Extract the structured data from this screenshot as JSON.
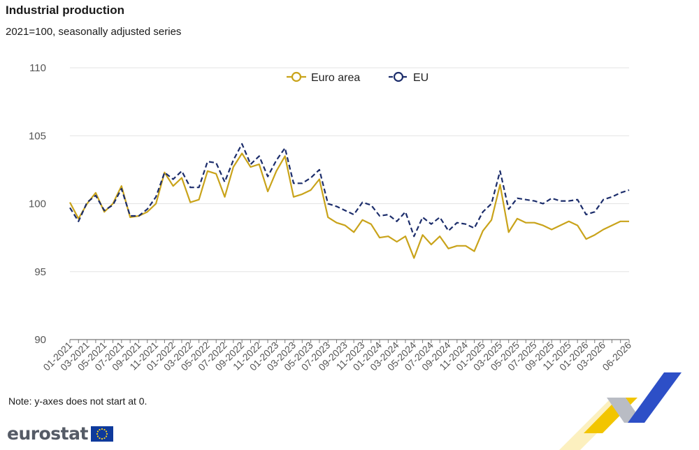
{
  "header": {
    "title": "Industrial production",
    "subtitle": "2021=100, seasonally adjusted series"
  },
  "footer": {
    "note": "Note: y-axes does not start at 0.",
    "logo_text": "eurostat"
  },
  "colors": {
    "euro_area": "#c9a31a",
    "eu": "#1c2d6b",
    "grid": "#e3e3e3",
    "deco_yellow": "#f2c500",
    "deco_blue": "#2d4fc7",
    "deco_grey": "#b9bcc4"
  },
  "chart_data": {
    "type": "line",
    "ylim": [
      90,
      110
    ],
    "yticks": [
      "90",
      "95",
      "100",
      "105",
      "110"
    ],
    "x": [
      "01-2021",
      "02-2021",
      "03-2021",
      "04-2021",
      "05-2021",
      "06-2021",
      "07-2021",
      "08-2021",
      "09-2021",
      "10-2021",
      "11-2021",
      "12-2021",
      "01-2022",
      "02-2022",
      "03-2022",
      "04-2022",
      "05-2022",
      "06-2022",
      "07-2022",
      "08-2022",
      "09-2022",
      "10-2022",
      "11-2022",
      "12-2022",
      "01-2023",
      "02-2023",
      "03-2023",
      "04-2023",
      "05-2023",
      "06-2023",
      "07-2023",
      "08-2023",
      "09-2023",
      "10-2023",
      "11-2023",
      "12-2023",
      "01-2024",
      "02-2024",
      "03-2024",
      "04-2024",
      "05-2024",
      "06-2024",
      "07-2024",
      "08-2024",
      "09-2024",
      "10-2024",
      "11-2024",
      "12-2024",
      "01-2025",
      "02-2025",
      "03-2025",
      "04-2025",
      "05-2025",
      "06-2025",
      "07-2025",
      "08-2025",
      "09-2025",
      "10-2025",
      "11-2025",
      "12-2025",
      "01-2026",
      "02-2026",
      "03-2026",
      "04-2026",
      "05-2026",
      "06-2026"
    ],
    "x_tick_labels": [
      "01-2021",
      "03-2021",
      "05-2021",
      "07-2021",
      "09-2021",
      "11-2021",
      "01-2022",
      "03-2022",
      "05-2022",
      "07-2022",
      "09-2022",
      "11-2022",
      "01-2023",
      "03-2023",
      "05-2023",
      "07-2023",
      "09-2023",
      "11-2023",
      "01-2024",
      "03-2024",
      "05-2024",
      "07-2024",
      "09-2024",
      "11-2024",
      "01-2025",
      "03-2025",
      "05-2025",
      "07-2025",
      "09-2025",
      "11-2025",
      "01-2026",
      "03-2026",
      "06-2026"
    ],
    "legend_position": "top-center",
    "grid": true,
    "series": [
      {
        "name": "Euro area",
        "style": "solid",
        "values": [
          100.1,
          98.9,
          100.0,
          100.8,
          99.4,
          100.0,
          101.3,
          99.0,
          99.1,
          99.4,
          100.0,
          102.3,
          101.3,
          101.9,
          100.1,
          100.3,
          102.4,
          102.2,
          100.5,
          102.7,
          103.7,
          102.7,
          102.9,
          100.9,
          102.4,
          103.5,
          100.5,
          100.7,
          101.0,
          101.8,
          99.0,
          98.6,
          98.4,
          97.9,
          98.8,
          98.5,
          97.5,
          97.6,
          97.2,
          97.6,
          96.0,
          97.7,
          97.0,
          97.6,
          96.7,
          96.9,
          96.9,
          96.5,
          98.0,
          98.8,
          101.4,
          97.9,
          98.9,
          98.6,
          98.6,
          98.4,
          98.1,
          98.4,
          98.7,
          98.4,
          97.4,
          97.7,
          98.1,
          98.4,
          98.7,
          98.7
        ]
      },
      {
        "name": "EU",
        "style": "dashed",
        "values": [
          99.7,
          98.7,
          100.1,
          100.6,
          99.5,
          99.9,
          101.1,
          99.1,
          99.1,
          99.6,
          100.5,
          102.3,
          101.8,
          102.4,
          101.2,
          101.2,
          103.1,
          103.0,
          101.6,
          103.2,
          104.4,
          102.9,
          103.5,
          102.0,
          103.2,
          104.1,
          101.5,
          101.5,
          101.9,
          102.5,
          100.0,
          99.8,
          99.5,
          99.2,
          100.1,
          99.9,
          99.1,
          99.2,
          98.7,
          99.4,
          97.6,
          99.0,
          98.5,
          99.0,
          98.0,
          98.6,
          98.5,
          98.2,
          99.4,
          100.0,
          102.4,
          99.6,
          100.4,
          100.3,
          100.2,
          100.0,
          100.4,
          100.2,
          100.2,
          100.3,
          99.2,
          99.4,
          100.3,
          100.5,
          100.8,
          101.0
        ]
      }
    ]
  }
}
